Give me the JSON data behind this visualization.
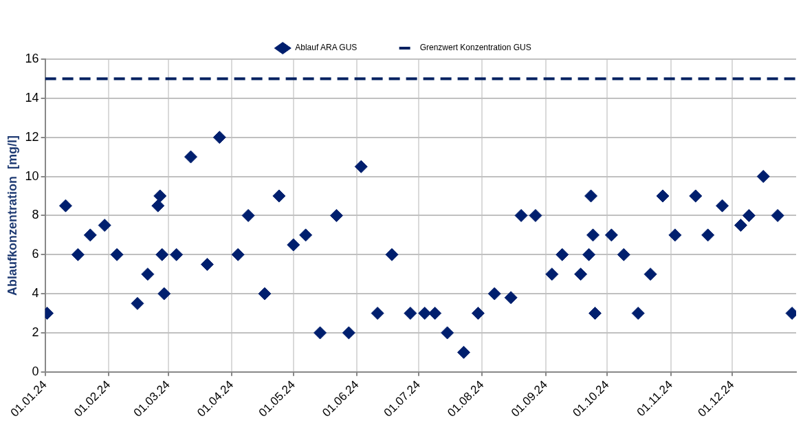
{
  "chart_data": {
    "type": "scatter",
    "ylabel": "Ablaufkonzentration  [mg/l]",
    "marker": "diamond",
    "grid": true,
    "legend": "top",
    "xlim": [
      "2024-01-01",
      "2025-01-01"
    ],
    "xticks": [
      {
        "value": "2024-01-01",
        "label": "01.01.24"
      },
      {
        "value": "2024-02-01",
        "label": "01.02.24"
      },
      {
        "value": "2024-03-01",
        "label": "01.03.24"
      },
      {
        "value": "2024-04-01",
        "label": "01.04.24"
      },
      {
        "value": "2024-05-01",
        "label": "01.05.24"
      },
      {
        "value": "2024-06-01",
        "label": "01.06.24"
      },
      {
        "value": "2024-07-01",
        "label": "01.07.24"
      },
      {
        "value": "2024-08-01",
        "label": "01.08.24"
      },
      {
        "value": "2024-09-01",
        "label": "01.09.24"
      },
      {
        "value": "2024-10-01",
        "label": "01.10.24"
      },
      {
        "value": "2024-11-01",
        "label": "01.11.24"
      },
      {
        "value": "2024-12-01",
        "label": "01.12.24"
      }
    ],
    "ylim": [
      0,
      16
    ],
    "yticks": [
      0,
      2,
      4,
      6,
      8,
      10,
      12,
      14,
      16
    ],
    "series": [
      {
        "name": "Ablauf ARA GUS",
        "color": "#001f6e",
        "x": [
          "2024-01-02",
          "2024-01-11",
          "2024-01-17",
          "2024-01-23",
          "2024-01-30",
          "2024-02-05",
          "2024-02-15",
          "2024-02-20",
          "2024-02-25",
          "2024-02-26",
          "2024-02-27",
          "2024-02-28",
          "2024-03-05",
          "2024-03-12",
          "2024-03-20",
          "2024-03-26",
          "2024-04-04",
          "2024-04-09",
          "2024-04-17",
          "2024-04-24",
          "2024-05-01",
          "2024-05-07",
          "2024-05-14",
          "2024-05-22",
          "2024-05-28",
          "2024-06-03",
          "2024-06-11",
          "2024-06-18",
          "2024-06-27",
          "2024-07-04",
          "2024-07-09",
          "2024-07-15",
          "2024-07-23",
          "2024-07-30",
          "2024-08-07",
          "2024-08-15",
          "2024-08-20",
          "2024-08-27",
          "2024-09-04",
          "2024-09-09",
          "2024-09-18",
          "2024-09-22",
          "2024-09-23",
          "2024-09-24",
          "2024-09-25",
          "2024-10-03",
          "2024-10-09",
          "2024-10-16",
          "2024-10-22",
          "2024-10-28",
          "2024-11-03",
          "2024-11-13",
          "2024-11-19",
          "2024-11-26",
          "2024-12-05",
          "2024-12-09",
          "2024-12-16",
          "2024-12-23",
          "2024-12-30"
        ],
        "values": [
          3,
          8.5,
          6,
          7,
          7.5,
          6,
          3.5,
          5,
          8.5,
          9,
          6,
          4,
          6,
          11,
          5.5,
          12,
          6,
          8,
          4,
          9,
          6.5,
          7,
          2,
          8,
          2,
          10.5,
          3,
          6,
          3,
          3,
          3,
          2,
          1,
          3,
          4,
          3.8,
          8,
          8,
          5,
          6,
          5,
          6,
          9,
          7,
          3,
          7,
          6,
          3,
          5,
          9,
          7,
          9,
          7,
          8.5,
          7.5,
          8,
          10,
          8,
          3
        ]
      }
    ],
    "ref_lines": [
      {
        "axis": "y",
        "value": 15,
        "label": "Grenzwert Konzentration GUS",
        "color": "#002060",
        "line_style": "dashed"
      }
    ]
  }
}
